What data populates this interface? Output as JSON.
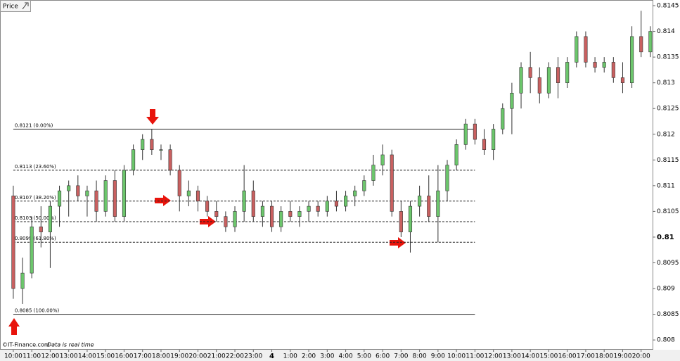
{
  "chart_data": {
    "type": "candlestick",
    "header": "Price",
    "footer_source": "©IT-Finance.com",
    "footer_note": "Data is real time",
    "xlim": [
      -0.72,
      34.62
    ],
    "ylim": [
      0.80781,
      0.81461
    ],
    "yticks": [
      0.8145,
      0.814,
      0.8135,
      0.813,
      0.8125,
      0.812,
      0.8115,
      0.811,
      0.8105,
      0.81,
      0.8095,
      0.809,
      0.8085,
      0.808
    ],
    "bold_ytick": 0.81,
    "xticks": [
      {
        "value": 0,
        "label": "10:00"
      },
      {
        "value": 1,
        "label": "11:00"
      },
      {
        "value": 2,
        "label": "12:00"
      },
      {
        "value": 3,
        "label": "13:00"
      },
      {
        "value": 4,
        "label": "14:00"
      },
      {
        "value": 5,
        "label": "15:00"
      },
      {
        "value": 6,
        "label": "16:00"
      },
      {
        "value": 7,
        "label": "17:00"
      },
      {
        "value": 8,
        "label": "18:00"
      },
      {
        "value": 9,
        "label": "19:00"
      },
      {
        "value": 10,
        "label": "20:00"
      },
      {
        "value": 11,
        "label": "21:00"
      },
      {
        "value": 12,
        "label": "22:00"
      },
      {
        "value": 13,
        "label": "23:00"
      },
      {
        "value": 14,
        "label": "4"
      },
      {
        "value": 15,
        "label": "1:00"
      },
      {
        "value": 16,
        "label": "2:00"
      },
      {
        "value": 17,
        "label": "3:00"
      },
      {
        "value": 18,
        "label": "4:00"
      },
      {
        "value": 19,
        "label": "5:00"
      },
      {
        "value": 20,
        "label": "6:00"
      },
      {
        "value": 21,
        "label": "7:00"
      },
      {
        "value": 22,
        "label": "8:00"
      },
      {
        "value": 23,
        "label": "9:00"
      },
      {
        "value": 24,
        "label": "10:00"
      },
      {
        "value": 25,
        "label": "11:00"
      },
      {
        "value": 26,
        "label": "12:00"
      },
      {
        "value": 27,
        "label": "13:00"
      },
      {
        "value": 28,
        "label": "14:00"
      },
      {
        "value": 29,
        "label": "15:00"
      },
      {
        "value": 30,
        "label": "16:00"
      },
      {
        "value": 31,
        "label": "17:00"
      },
      {
        "value": 32,
        "label": "18:00"
      },
      {
        "value": 33,
        "label": "19:00"
      },
      {
        "value": 34,
        "label": "20:00"
      }
    ],
    "up_color": "#6cc66c",
    "down_color": "#c96060",
    "x": [
      0,
      0.5,
      1,
      1.5,
      2,
      2.5,
      3,
      3.5,
      4,
      4.5,
      5,
      5.5,
      6,
      6.5,
      7,
      7.5,
      8,
      8.5,
      9,
      9.5,
      10,
      10.5,
      11,
      11.5,
      12,
      12.5,
      13,
      13.5,
      14,
      14.5,
      15,
      15.5,
      16,
      16.5,
      17,
      17.5,
      18,
      18.5,
      19,
      19.5,
      20,
      20.5,
      21,
      21.5,
      22,
      22.5,
      23,
      23.5,
      24,
      24.5,
      25,
      25.5,
      26,
      26.5,
      27,
      27.5,
      28,
      28.5,
      29,
      29.5,
      30,
      30.5,
      31,
      31.5,
      32,
      32.5,
      33,
      33.5,
      34,
      34.5
    ],
    "open": [
      0.8108,
      0.809,
      0.8093,
      0.8102,
      0.8101,
      0.8106,
      0.8109,
      0.811,
      0.8108,
      0.8109,
      0.8105,
      0.8111,
      0.8104,
      0.8113,
      0.8117,
      0.8119,
      0.8117,
      0.8117,
      0.8113,
      0.8108,
      0.8109,
      0.8107,
      0.8105,
      0.8104,
      0.8102,
      0.8105,
      0.8109,
      0.8104,
      0.8106,
      0.8102,
      0.8105,
      0.8104,
      0.8105,
      0.8106,
      0.8105,
      0.8107,
      0.8106,
      0.8108,
      0.8109,
      0.8111,
      0.8114,
      0.8116,
      0.8105,
      0.8101,
      0.8106,
      0.8108,
      0.8104,
      0.8109,
      0.8114,
      0.8118,
      0.8122,
      0.8119,
      0.8117,
      0.8121,
      0.8125,
      0.8128,
      0.8133,
      0.8131,
      0.8128,
      0.8133,
      0.813,
      0.8134,
      0.8139,
      0.8134,
      0.8133,
      0.8134,
      0.8131,
      0.813,
      0.8139,
      0.8136
    ],
    "high": [
      0.811,
      0.8096,
      0.8104,
      0.8106,
      0.8107,
      0.811,
      0.8111,
      0.8112,
      0.811,
      0.8111,
      0.8112,
      0.8113,
      0.8114,
      0.8118,
      0.812,
      0.8121,
      0.8118,
      0.8118,
      0.8114,
      0.8111,
      0.811,
      0.8108,
      0.8107,
      0.8105,
      0.8106,
      0.8114,
      0.8111,
      0.8107,
      0.8107,
      0.8106,
      0.8107,
      0.8106,
      0.8107,
      0.8107,
      0.8108,
      0.8109,
      0.8109,
      0.811,
      0.8112,
      0.8116,
      0.8118,
      0.8117,
      0.8107,
      0.8107,
      0.811,
      0.8112,
      0.8114,
      0.8115,
      0.8119,
      0.8123,
      0.8123,
      0.8121,
      0.8122,
      0.8126,
      0.813,
      0.8134,
      0.8136,
      0.8133,
      0.8134,
      0.8135,
      0.8135,
      0.814,
      0.814,
      0.8135,
      0.8135,
      0.8135,
      0.8134,
      0.8141,
      0.8144,
      0.8141
    ],
    "low": [
      0.8088,
      0.8087,
      0.8092,
      0.8098,
      0.8094,
      0.8102,
      0.8104,
      0.8107,
      0.8104,
      0.8103,
      0.8104,
      0.8103,
      0.8103,
      0.8112,
      0.8115,
      0.8116,
      0.8115,
      0.8112,
      0.8105,
      0.8106,
      0.8105,
      0.8104,
      0.8103,
      0.8101,
      0.8101,
      0.8103,
      0.8103,
      0.8102,
      0.8101,
      0.8101,
      0.8103,
      0.8102,
      0.8103,
      0.8104,
      0.8104,
      0.8105,
      0.8105,
      0.8106,
      0.8108,
      0.811,
      0.8112,
      0.8104,
      0.81,
      0.8097,
      0.8104,
      0.8103,
      0.8099,
      0.8107,
      0.8113,
      0.8117,
      0.8118,
      0.8116,
      0.8115,
      0.812,
      0.812,
      0.8125,
      0.8128,
      0.8126,
      0.8127,
      0.8127,
      0.8129,
      0.8133,
      0.8133,
      0.8132,
      0.8132,
      0.813,
      0.8128,
      0.8129,
      0.8135,
      0.8135
    ],
    "close": [
      0.809,
      0.8093,
      0.8102,
      0.8101,
      0.8106,
      0.8109,
      0.811,
      0.8108,
      0.8109,
      0.8105,
      0.8111,
      0.8104,
      0.8113,
      0.8117,
      0.8119,
      0.8117,
      0.8117,
      0.8113,
      0.8108,
      0.8109,
      0.8107,
      0.8105,
      0.8104,
      0.8102,
      0.8105,
      0.8109,
      0.8104,
      0.8106,
      0.8102,
      0.8105,
      0.8104,
      0.8105,
      0.8106,
      0.8105,
      0.8107,
      0.8106,
      0.8108,
      0.8109,
      0.8111,
      0.8114,
      0.8116,
      0.8105,
      0.8101,
      0.8106,
      0.8108,
      0.8104,
      0.8109,
      0.8114,
      0.8118,
      0.8122,
      0.8119,
      0.8117,
      0.8121,
      0.8125,
      0.8128,
      0.8133,
      0.8131,
      0.8128,
      0.8133,
      0.813,
      0.8134,
      0.8139,
      0.8134,
      0.8133,
      0.8134,
      0.8131,
      0.813,
      0.8139,
      0.8136,
      0.814
    ],
    "fib_levels": [
      {
        "value": 0.8121,
        "label": "0.8121 (0.00%)",
        "style": "solid"
      },
      {
        "value": 0.8113,
        "label": "0.8113 (23.60%)",
        "style": "dashed"
      },
      {
        "value": 0.8107,
        "label": "0.8107 (38.20%)",
        "style": "dashed"
      },
      {
        "value": 0.8103,
        "label": "0.8103 (50.00%)",
        "style": "dashed"
      },
      {
        "value": 0.8099,
        "label": "0.8099 (61.80%)",
        "style": "dashed"
      },
      {
        "value": 0.8085,
        "label": "0.8085 (100.00%)",
        "style": "solid"
      }
    ]
  }
}
